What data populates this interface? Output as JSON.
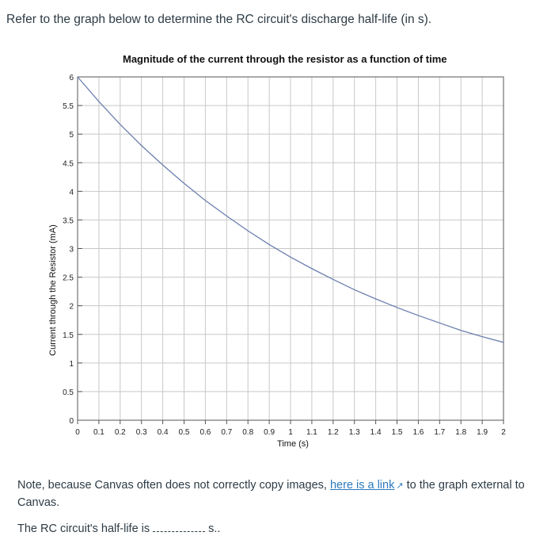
{
  "question": {
    "text": "Refer to the graph below to determine the RC circuit's discharge half-life (in s)."
  },
  "note": {
    "before": "Note, because Canvas often does not correctly copy images, ",
    "link": "here is a link",
    "after": " to the graph external to Canvas.",
    "link_icon": "external-link-icon"
  },
  "answer": {
    "prefix": "The RC circuit's half-life is",
    "suffix": "s.."
  },
  "chart_data": {
    "type": "line",
    "title": "Magnitude of the current through the resistor as a function of time",
    "xlabel": "Time (s)",
    "ylabel": "Current through the Resistor (mA)",
    "xlim": [
      0,
      2
    ],
    "ylim": [
      0,
      6
    ],
    "xticks": [
      "0",
      "0.1",
      "0.2",
      "0.3",
      "0.4",
      "0.5",
      "0.6",
      "0.7",
      "0.8",
      "0.9",
      "1",
      "1.1",
      "1.2",
      "1.3",
      "1.4",
      "1.5",
      "1.6",
      "1.7",
      "1.8",
      "1.9",
      "2"
    ],
    "yticks": [
      "0",
      "0.5",
      "1",
      "1.5",
      "2",
      "2.5",
      "3",
      "3.5",
      "4",
      "4.5",
      "5",
      "5.5",
      "6"
    ],
    "grid": true,
    "series": [
      {
        "color": "#6b7fae",
        "x": [
          0,
          0.1,
          0.2,
          0.3,
          0.4,
          0.5,
          0.6,
          0.7,
          0.8,
          0.9,
          1.0,
          1.1,
          1.2,
          1.3,
          1.4,
          1.5,
          1.6,
          1.7,
          1.8,
          1.9,
          2.0
        ],
        "y": [
          6.0,
          5.57,
          5.17,
          4.8,
          4.46,
          4.14,
          3.84,
          3.57,
          3.31,
          3.07,
          2.85,
          2.65,
          2.46,
          2.28,
          2.12,
          1.97,
          1.83,
          1.7,
          1.57,
          1.46,
          1.36
        ]
      }
    ]
  }
}
